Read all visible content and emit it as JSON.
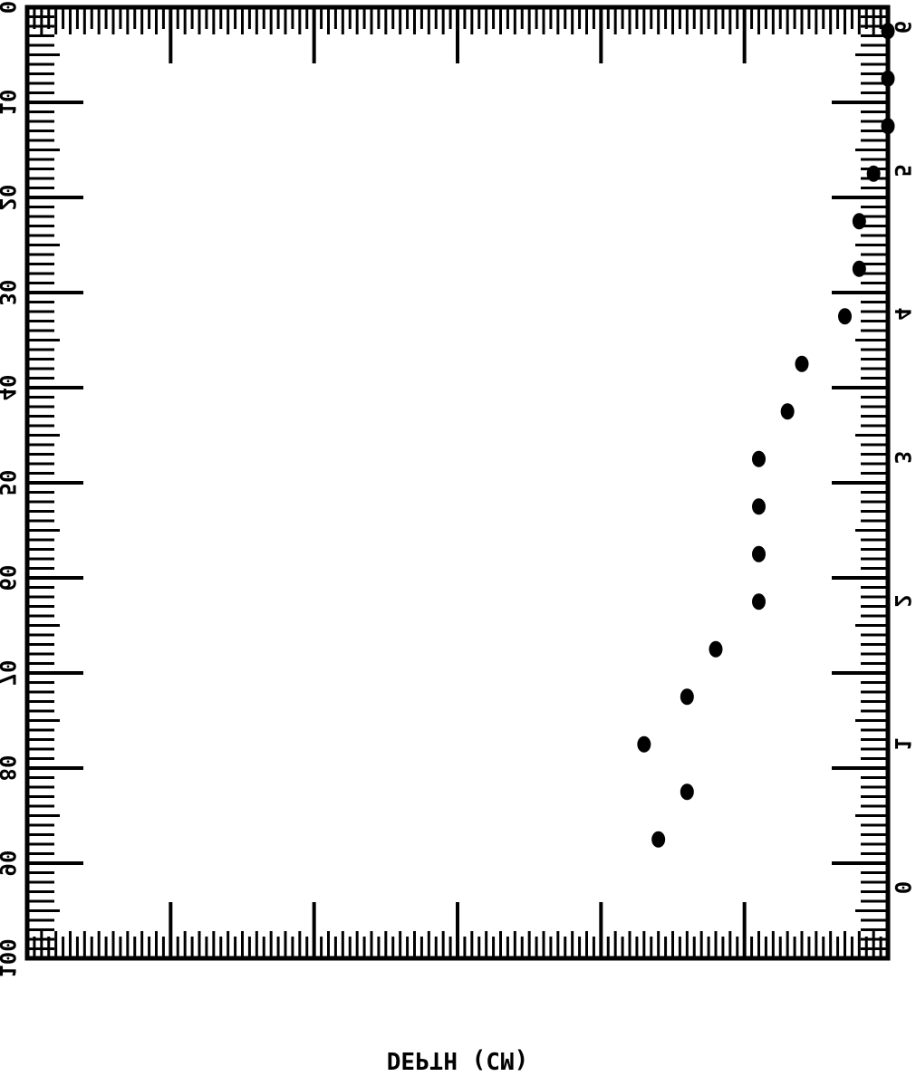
{
  "chart_data": {
    "type": "scatter",
    "title": "",
    "xlabel": "DEPTH (CM)",
    "ylabel": "",
    "xlim": [
      0,
      100
    ],
    "ylim": [
      0,
      6
    ],
    "x_ticks": [
      "0",
      "10",
      "20",
      "30",
      "40",
      "50",
      "60",
      "70",
      "80",
      "90",
      "100"
    ],
    "y_ticks": [
      "0",
      "1",
      "2",
      "3",
      "4",
      "5",
      "6"
    ],
    "grid": false,
    "orientation": "rotated 90 degrees clockwise and mirrored (depth runs top to bottom along the left; value axis runs right to left along the bottom)",
    "series": [
      {
        "x": [
          2.5,
          7.5,
          12.5,
          17.5,
          22.5,
          27.5,
          32.5,
          37.5,
          42.5,
          47.5,
          52.5,
          57.5,
          62.5,
          67.5,
          72.5,
          77.5,
          82.5,
          87.5
        ],
        "y": [
          0.0,
          0.0,
          0.0,
          0.1,
          0.2,
          0.2,
          0.3,
          0.6,
          0.7,
          0.9,
          0.9,
          0.9,
          0.9,
          1.2,
          1.4,
          1.7,
          1.4,
          1.6
        ]
      }
    ],
    "marker_color": "#000000"
  }
}
